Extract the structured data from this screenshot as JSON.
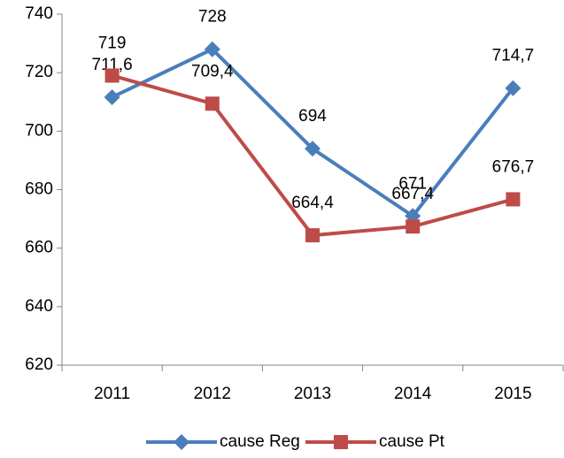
{
  "chart_data": {
    "type": "line",
    "categories": [
      "2011",
      "2012",
      "2013",
      "2014",
      "2015"
    ],
    "series": [
      {
        "name": "cause Reg",
        "color": "#4a7ebb",
        "marker": "diamond",
        "values": [
          711.6,
          728,
          694,
          671,
          714.7
        ],
        "value_labels": [
          "711,6",
          "728",
          "694",
          "671",
          "714,7"
        ]
      },
      {
        "name": "cause Pt",
        "color": "#be4b48",
        "marker": "square",
        "values": [
          719,
          709.4,
          664.4,
          667.4,
          676.7
        ],
        "value_labels": [
          "719",
          "709,4",
          "664,4",
          "667,4",
          "676,7"
        ]
      }
    ],
    "ylim": [
      620,
      740
    ],
    "yticks": [
      620,
      640,
      660,
      680,
      700,
      720,
      740
    ],
    "grid": false,
    "legend": "bottom"
  }
}
